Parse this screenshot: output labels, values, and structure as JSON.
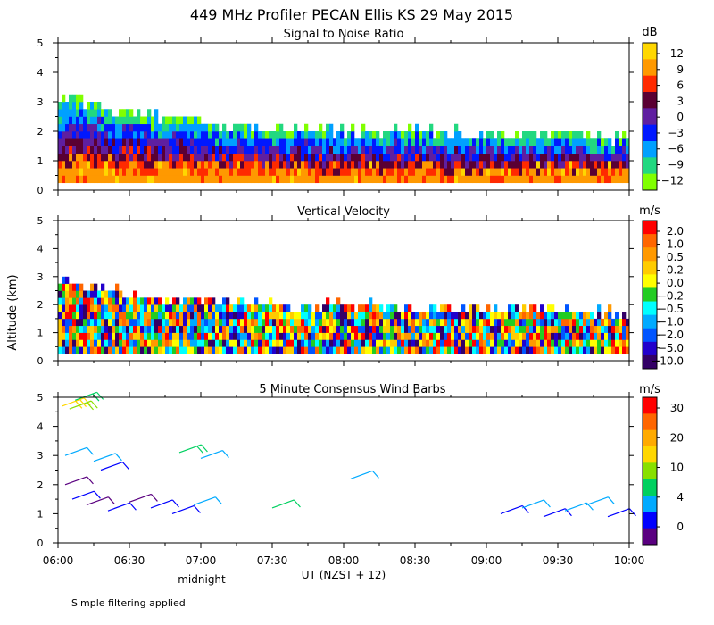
{
  "title": "449 MHz Profiler PECAN Ellis KS 29 May 2015",
  "y_axis_label": "Altitude (km)",
  "x_axis_label": "UT  (NZST + 12)",
  "midnight_label": "midnight",
  "footnote": "Simple filtering applied",
  "x_ticks": [
    "06:00",
    "06:30",
    "07:00",
    "07:30",
    "08:00",
    "08:30",
    "09:00",
    "09:30",
    "10:00"
  ],
  "y_ticks": [
    "0",
    "1",
    "2",
    "3",
    "4",
    "5"
  ],
  "chart_data": [
    {
      "type": "heatmap",
      "title": "Signal to Noise Ratio",
      "xlabel": "UT  (NZST + 12)",
      "ylabel": "Altitude (km)",
      "xlim": [
        "06:00",
        "10:00"
      ],
      "ylim": [
        0,
        5
      ],
      "colorbar": {
        "unit": "dB",
        "ticks": [
          "12",
          "9",
          "6",
          "3",
          "0",
          "−3",
          "−6",
          "−9",
          "−12"
        ],
        "colors": [
          "#ffd700",
          "#ff9900",
          "#ff2a00",
          "#5a0033",
          "#5f1fa0",
          "#0018ff",
          "#00a0ff",
          "#22d880",
          "#80ff00"
        ]
      },
      "echo_top_km": [
        {
          "x": "06:00",
          "y": 3.0
        },
        {
          "x": "06:15",
          "y": 2.8
        },
        {
          "x": "06:30",
          "y": 2.5
        },
        {
          "x": "07:00",
          "y": 2.2
        },
        {
          "x": "07:30",
          "y": 2.0
        },
        {
          "x": "08:00",
          "y": 1.9
        },
        {
          "x": "08:30",
          "y": 1.9
        },
        {
          "x": "09:00",
          "y": 1.8
        },
        {
          "x": "09:30",
          "y": 1.75
        },
        {
          "x": "10:00",
          "y": 1.6
        }
      ]
    },
    {
      "type": "heatmap",
      "title": "Vertical Velocity",
      "xlabel": "UT  (NZST + 12)",
      "ylabel": "Altitude (km)",
      "xlim": [
        "06:00",
        "10:00"
      ],
      "ylim": [
        0,
        5
      ],
      "colorbar": {
        "unit": "m/s",
        "ticks": [
          "2.0",
          "1.0",
          "0.5",
          "0.2",
          "0.0",
          "−0.2",
          "−0.5",
          "−1.0",
          "−2.0",
          "−5.0",
          "−10.0"
        ],
        "colors": [
          "#ff0000",
          "#ff6600",
          "#ff9900",
          "#ffcc00",
          "#ffff00",
          "#22cc22",
          "#00ffff",
          "#00aaff",
          "#0055ff",
          "#2200cc",
          "#330066"
        ]
      },
      "echo_top_km": [
        {
          "x": "06:00",
          "y": 2.8
        },
        {
          "x": "06:30",
          "y": 2.3
        },
        {
          "x": "07:00",
          "y": 2.0
        },
        {
          "x": "07:30",
          "y": 1.9
        },
        {
          "x": "08:00",
          "y": 1.85
        },
        {
          "x": "08:30",
          "y": 1.8
        },
        {
          "x": "09:00",
          "y": 1.8
        },
        {
          "x": "09:30",
          "y": 1.75
        },
        {
          "x": "10:00",
          "y": 1.6
        }
      ]
    },
    {
      "type": "scatter",
      "title": "5 Minute Consensus Wind Barbs",
      "xlabel": "UT  (NZST + 12)",
      "ylabel": "Altitude (km)",
      "xlim": [
        "06:00",
        "10:00"
      ],
      "ylim": [
        0,
        5
      ],
      "colorbar": {
        "unit": "m/s",
        "ticks": [
          "30",
          "20",
          "10",
          "4",
          "0"
        ],
        "colors": [
          "#ff0000",
          "#ff6600",
          "#ffaa00",
          "#ffd700",
          "#88e000",
          "#00d060",
          "#00aaff",
          "#0000ff",
          "#5a0080"
        ]
      },
      "barbs": [
        {
          "t": 0.03,
          "alt": 4.7,
          "speed": 22
        },
        {
          "t": 0.08,
          "alt": 4.6,
          "speed": 18
        },
        {
          "t": 0.12,
          "alt": 4.9,
          "speed": 12
        },
        {
          "t": 0.05,
          "alt": 3.0,
          "speed": 10
        },
        {
          "t": 0.25,
          "alt": 2.8,
          "speed": 8
        },
        {
          "t": 0.3,
          "alt": 2.5,
          "speed": 6
        },
        {
          "t": 0.85,
          "alt": 3.1,
          "speed": 12
        },
        {
          "t": 1.0,
          "alt": 2.9,
          "speed": 9
        },
        {
          "t": 1.5,
          "alt": 1.2,
          "speed": 11
        },
        {
          "t": 2.05,
          "alt": 2.2,
          "speed": 10
        },
        {
          "t": 0.05,
          "alt": 2.0,
          "speed": 2
        },
        {
          "t": 0.1,
          "alt": 1.5,
          "speed": 3
        },
        {
          "t": 0.2,
          "alt": 1.3,
          "speed": 2
        },
        {
          "t": 0.35,
          "alt": 1.1,
          "speed": 3
        },
        {
          "t": 0.5,
          "alt": 1.4,
          "speed": 2
        },
        {
          "t": 0.65,
          "alt": 1.2,
          "speed": 5
        },
        {
          "t": 0.8,
          "alt": 1.0,
          "speed": 3
        },
        {
          "t": 0.95,
          "alt": 1.3,
          "speed": 7
        },
        {
          "t": 3.1,
          "alt": 1.0,
          "speed": 6
        },
        {
          "t": 3.25,
          "alt": 1.2,
          "speed": 8
        },
        {
          "t": 3.4,
          "alt": 0.9,
          "speed": 3
        },
        {
          "t": 3.55,
          "alt": 1.1,
          "speed": 9
        },
        {
          "t": 3.7,
          "alt": 1.3,
          "speed": 10
        },
        {
          "t": 3.85,
          "alt": 0.9,
          "speed": 4
        }
      ]
    }
  ]
}
